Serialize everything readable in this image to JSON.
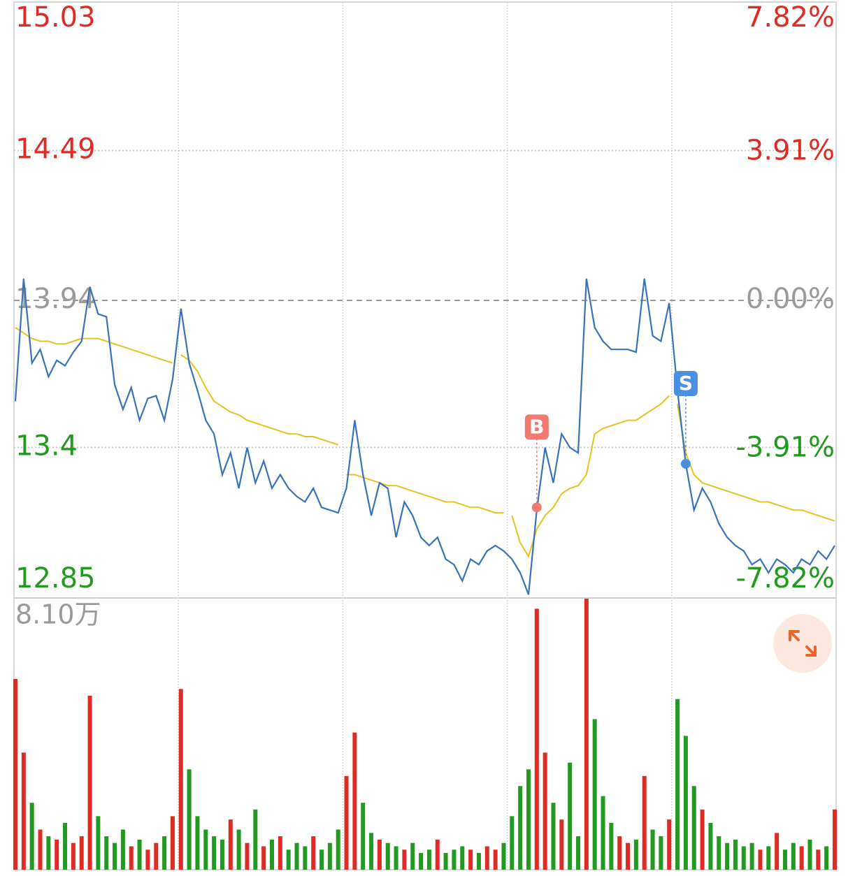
{
  "chart_data": {
    "type": "intraday",
    "up_color": "#e02b25",
    "down_color": "#22991f",
    "neutral_color": "#9a9a9a",
    "price": {
      "name": "price",
      "color": "#3a72b8",
      "values": [
        13.57,
        14.02,
        13.71,
        13.76,
        13.66,
        13.72,
        13.7,
        13.75,
        13.79,
        13.99,
        13.89,
        13.88,
        13.63,
        13.54,
        13.62,
        13.5,
        13.58,
        13.59,
        13.5,
        13.65,
        13.91,
        13.71,
        13.61,
        13.5,
        13.45,
        13.3,
        13.38,
        13.25,
        13.4,
        13.27,
        13.35,
        13.25,
        13.3,
        13.25,
        13.22,
        13.2,
        13.25,
        13.18,
        13.17,
        13.16,
        13.25,
        13.5,
        13.3,
        13.15,
        13.27,
        13.25,
        13.07,
        13.2,
        13.15,
        13.07,
        13.04,
        13.07,
        12.99,
        12.97,
        12.91,
        12.99,
        12.97,
        13.02,
        13.04,
        13.02,
        12.99,
        12.94,
        12.86,
        13.17,
        13.4,
        13.27,
        13.45,
        13.4,
        13.38,
        14.02,
        13.84,
        13.79,
        13.76,
        13.76,
        13.76,
        13.75,
        14.02,
        13.81,
        13.79,
        13.93,
        13.61,
        13.34,
        13.17,
        13.25,
        13.2,
        13.12,
        13.07,
        13.04,
        13.02,
        12.97,
        12.99,
        12.94,
        12.99,
        12.97,
        12.94,
        12.99,
        12.97,
        13.02,
        12.99,
        13.04
      ]
    },
    "average": {
      "name": "average",
      "color": "#e6c21f",
      "values": [
        13.84,
        13.82,
        13.8,
        13.79,
        13.79,
        13.78,
        13.78,
        13.79,
        13.8,
        13.8,
        13.8,
        13.79,
        13.78,
        13.77,
        13.76,
        13.75,
        13.74,
        13.73,
        13.72,
        13.71,
        13.74,
        13.72,
        13.68,
        13.62,
        13.57,
        13.55,
        13.53,
        13.52,
        13.5,
        13.49,
        13.48,
        13.47,
        13.46,
        13.45,
        13.45,
        13.44,
        13.44,
        13.43,
        13.42,
        13.41,
        13.3,
        13.3,
        13.29,
        13.28,
        13.27,
        13.26,
        13.26,
        13.25,
        13.24,
        13.23,
        13.22,
        13.21,
        13.2,
        13.2,
        13.19,
        13.18,
        13.18,
        13.17,
        13.16,
        13.16,
        13.15,
        13.05,
        13.0,
        13.1,
        13.15,
        13.18,
        13.23,
        13.25,
        13.26,
        13.3,
        13.45,
        13.47,
        13.48,
        13.49,
        13.5,
        13.5,
        13.52,
        13.54,
        13.56,
        13.59,
        13.56,
        13.38,
        13.3,
        13.27,
        13.26,
        13.25,
        13.24,
        13.23,
        13.22,
        13.21,
        13.2,
        13.2,
        13.19,
        13.18,
        13.17,
        13.17,
        13.16,
        13.15,
        13.14,
        13.13
      ]
    },
    "days": 5,
    "ylim": [
      12.85,
      15.03
    ],
    "yticks": [
      15.03,
      14.49,
      13.94,
      13.4,
      12.85
    ],
    "y2lim": [
      -7.82,
      7.82
    ],
    "y2ticks": [
      {
        "value": 7.82,
        "label": "7.82%"
      },
      {
        "value": 3.91,
        "label": "3.91%"
      },
      {
        "value": 0,
        "label": "0.00%"
      },
      {
        "value": -3.91,
        "label": "-3.91%"
      },
      {
        "value": -7.82,
        "label": "-7.82%"
      }
    ],
    "volume": {
      "values": [
        5.7,
        3.5,
        2.0,
        1.2,
        1.0,
        0.9,
        1.4,
        0.8,
        1.0,
        5.2,
        1.6,
        1.0,
        0.8,
        1.2,
        0.7,
        0.9,
        0.6,
        0.8,
        1.0,
        1.6,
        5.4,
        3.0,
        1.6,
        1.2,
        1.0,
        0.9,
        1.5,
        1.2,
        0.8,
        1.8,
        0.7,
        0.9,
        1.0,
        0.6,
        0.8,
        0.7,
        1.0,
        0.6,
        0.8,
        1.2,
        2.8,
        4.1,
        2.0,
        1.1,
        0.9,
        0.8,
        0.7,
        0.6,
        0.8,
        0.5,
        0.6,
        0.9,
        0.5,
        0.6,
        0.7,
        0.6,
        0.5,
        0.7,
        0.6,
        0.8,
        1.6,
        2.5,
        3.0,
        7.8,
        3.5,
        2.0,
        1.5,
        3.2,
        1.0,
        8.1,
        4.5,
        2.2,
        1.4,
        1.0,
        0.8,
        0.9,
        2.8,
        1.2,
        1.0,
        1.5,
        5.1,
        4.0,
        2.5,
        1.8,
        1.4,
        1.0,
        0.8,
        0.9,
        0.7,
        0.8,
        0.6,
        0.7,
        1.1,
        0.6,
        0.8,
        0.7,
        0.9,
        0.6,
        0.7,
        1.8
      ],
      "ylim": [
        0,
        8.1
      ],
      "yticks": [
        {
          "value": 8.1,
          "label": "8.10万"
        }
      ]
    },
    "trades": [
      {
        "label": "B",
        "index": 63,
        "price": 13.18,
        "color": "#f07a6e"
      },
      {
        "label": "S",
        "index": 81,
        "price": 13.34,
        "color": "#4a90e2"
      }
    ]
  }
}
